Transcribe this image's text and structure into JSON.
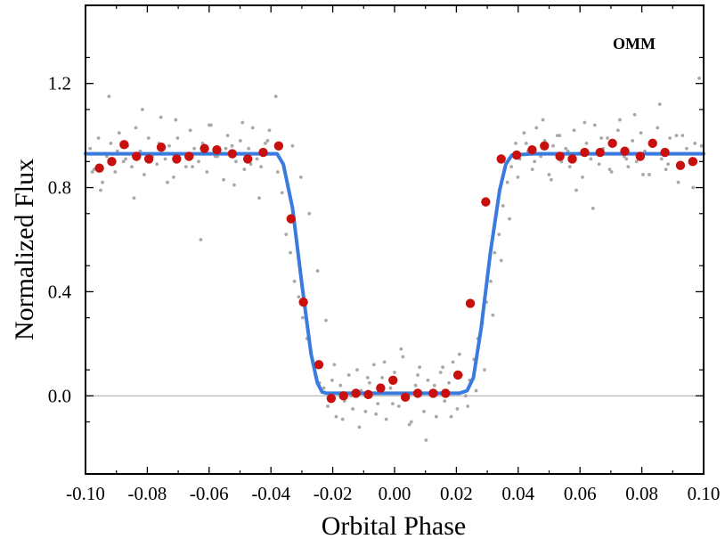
{
  "chart_data": {
    "type": "scatter",
    "title": "",
    "annotation": "OMM",
    "xlabel": "Orbital Phase",
    "ylabel": "Normalized Flux",
    "xlim": [
      -0.1,
      0.1
    ],
    "ylim": [
      -0.3,
      1.5
    ],
    "x_ticks": [
      -0.1,
      -0.08,
      -0.06,
      -0.04,
      -0.02,
      0.0,
      0.02,
      0.04,
      0.06,
      0.08,
      0.1
    ],
    "x_tick_labels": [
      "-0.10",
      "-0.08",
      "-0.06",
      "-0.04",
      "-0.02",
      "0.00",
      "0.02",
      "0.04",
      "0.06",
      "0.08",
      "0.10"
    ],
    "y_ticks": [
      0.0,
      0.4,
      0.8,
      1.2
    ],
    "y_tick_labels": [
      "0.0",
      "0.4",
      "0.8",
      "1.2"
    ],
    "reference_line": 0.0,
    "colors": {
      "raw": "#a8a8a8",
      "binned": "#c8100e",
      "model": "#3a7be0",
      "reference": "#b0b0b0"
    },
    "series": [
      {
        "name": "binned",
        "style": "large red markers",
        "x": [
          -0.0955,
          -0.0915,
          -0.0875,
          -0.0835,
          -0.0795,
          -0.0755,
          -0.0705,
          -0.0665,
          -0.0615,
          -0.0575,
          -0.0525,
          -0.0475,
          -0.0425,
          -0.0375,
          -0.0335,
          -0.0295,
          -0.0245,
          -0.0205,
          -0.0165,
          -0.0125,
          -0.0085,
          -0.0045,
          -0.0005,
          0.0035,
          0.0075,
          0.0125,
          0.0165,
          0.0205,
          0.0245,
          0.0295,
          0.0345,
          0.0395,
          0.0445,
          0.0485,
          0.0535,
          0.0575,
          0.0615,
          0.0665,
          0.0705,
          0.0745,
          0.0795,
          0.0835,
          0.0875,
          0.0925,
          0.0965
        ],
        "y": [
          0.875,
          0.9,
          0.965,
          0.92,
          0.91,
          0.955,
          0.91,
          0.92,
          0.95,
          0.945,
          0.93,
          0.91,
          0.935,
          0.96,
          0.68,
          0.36,
          0.12,
          -0.01,
          0.0,
          0.01,
          0.005,
          0.03,
          0.06,
          -0.005,
          0.01,
          0.01,
          0.01,
          0.08,
          0.355,
          0.745,
          0.91,
          0.925,
          0.945,
          0.96,
          0.92,
          0.91,
          0.935,
          0.935,
          0.97,
          0.94,
          0.92,
          0.97,
          0.935,
          0.885,
          0.9
        ]
      },
      {
        "name": "model",
        "style": "blue line",
        "x": [
          -0.1,
          -0.045,
          -0.038,
          -0.036,
          -0.033,
          -0.03,
          -0.027,
          -0.025,
          -0.0235,
          -0.022,
          0.021,
          0.0235,
          0.0255,
          0.028,
          0.031,
          0.034,
          0.036,
          0.038,
          0.045,
          0.1
        ],
        "y": [
          0.93,
          0.93,
          0.93,
          0.89,
          0.72,
          0.43,
          0.16,
          0.05,
          0.015,
          0.01,
          0.01,
          0.02,
          0.07,
          0.26,
          0.55,
          0.79,
          0.89,
          0.925,
          0.93,
          0.93
        ]
      },
      {
        "name": "raw",
        "style": "small grey dots",
        "x": [
          -0.0985,
          -0.0972,
          -0.0958,
          -0.0945,
          -0.0931,
          -0.0918,
          -0.0904,
          -0.0891,
          -0.0877,
          -0.0864,
          -0.085,
          -0.0837,
          -0.0823,
          -0.081,
          -0.0796,
          -0.0783,
          -0.0769,
          -0.0756,
          -0.0742,
          -0.0729,
          -0.0715,
          -0.0702,
          -0.0688,
          -0.0675,
          -0.0661,
          -0.0648,
          -0.0634,
          -0.0621,
          -0.0607,
          -0.0594,
          -0.058,
          -0.0567,
          -0.0553,
          -0.054,
          -0.0526,
          -0.0513,
          -0.0499,
          -0.0486,
          -0.0472,
          -0.0459,
          -0.0445,
          -0.0432,
          -0.0418,
          -0.0405,
          -0.0391,
          -0.0378,
          -0.0364,
          -0.0351,
          -0.0337,
          -0.0324,
          -0.031,
          -0.0297,
          -0.0283,
          -0.027,
          -0.0256,
          -0.0243,
          -0.0229,
          -0.0216,
          -0.0202,
          -0.0189,
          -0.0175,
          -0.0162,
          -0.0148,
          -0.0135,
          -0.0121,
          -0.0108,
          -0.0094,
          -0.0081,
          -0.0067,
          -0.0054,
          -0.004,
          -0.0027,
          -0.0013,
          0.0,
          0.0014,
          0.0027,
          0.0041,
          0.0054,
          0.0068,
          0.0081,
          0.0095,
          0.0108,
          0.0122,
          0.0135,
          0.0149,
          0.0162,
          0.0176,
          0.0189,
          0.0203,
          0.0216,
          0.023,
          0.0243,
          0.0257,
          0.027,
          0.0284,
          0.0297,
          0.0311,
          0.0324,
          0.0338,
          0.0351,
          0.0365,
          0.0378,
          0.0392,
          0.0405,
          0.0419,
          0.0432,
          0.0446,
          0.0459,
          0.0473,
          0.0486,
          0.05,
          0.0513,
          0.0527,
          0.054,
          0.0554,
          0.0567,
          0.0581,
          0.0594,
          0.0608,
          0.0621,
          0.0635,
          0.0648,
          0.0662,
          0.0675,
          0.0689,
          0.0702,
          0.0716,
          0.0729,
          0.0743,
          0.0756,
          0.077,
          0.0783,
          0.0797,
          0.081,
          0.0824,
          0.0837,
          0.0851,
          0.0864,
          0.0878,
          0.0891,
          0.0905,
          0.0918,
          0.0932,
          0.0945,
          0.0959,
          0.0972,
          0.0986,
          -0.0978,
          -0.0951,
          -0.0924,
          -0.0897,
          -0.087,
          -0.0843,
          -0.0816,
          -0.0789,
          -0.0762,
          -0.0735,
          -0.0708,
          -0.0681,
          -0.0654,
          -0.0627,
          -0.06,
          -0.0573,
          -0.0546,
          -0.0519,
          -0.0492,
          -0.0465,
          -0.0438,
          -0.0411,
          -0.0384,
          -0.0357,
          -0.033,
          -0.0303,
          -0.0276,
          -0.0249,
          -0.0222,
          -0.0195,
          -0.0168,
          -0.0141,
          -0.0114,
          -0.0087,
          -0.006,
          -0.0033,
          -0.0006,
          0.0021,
          0.0048,
          0.0075,
          0.0102,
          0.0129,
          0.0156,
          0.0183,
          0.021,
          0.0237,
          0.0264,
          0.0291,
          0.0318,
          0.0345,
          0.0372,
          0.0399,
          0.0426,
          0.0453,
          0.048,
          0.0507,
          0.0534,
          0.0561,
          0.0588,
          0.0615,
          0.0642,
          0.0669,
          0.0696,
          0.0723,
          0.075,
          0.0777,
          0.0804,
          0.0831,
          0.0858,
          0.0885,
          0.0912,
          0.0939,
          0.0966,
          0.0993
        ],
        "y": [
          0.95,
          0.87,
          0.99,
          0.82,
          0.92,
          0.97,
          0.86,
          1.01,
          0.9,
          0.96,
          0.88,
          1.03,
          0.94,
          0.85,
          0.99,
          0.92,
          0.89,
          1.07,
          0.91,
          0.96,
          0.84,
          0.99,
          0.93,
          0.88,
          1.02,
          0.95,
          0.9,
          0.97,
          0.86,
          1.04,
          0.92,
          0.94,
          0.83,
          1.0,
          0.96,
          0.9,
          0.98,
          0.87,
          0.95,
          1.03,
          0.91,
          0.88,
          0.97,
          1.02,
          0.93,
          0.86,
          0.78,
          0.62,
          0.55,
          0.44,
          0.38,
          0.3,
          0.22,
          0.16,
          0.08,
          0.05,
          0.03,
          -0.04,
          0.06,
          -0.08,
          0.04,
          -0.02,
          0.08,
          -0.05,
          0.1,
          0.02,
          -0.06,
          0.05,
          0.12,
          -0.03,
          0.07,
          -0.09,
          0.03,
          0.09,
          -0.04,
          0.15,
          0.0,
          -0.1,
          0.04,
          0.11,
          -0.06,
          0.06,
          0.02,
          -0.08,
          0.09,
          -0.02,
          0.05,
          0.13,
          -0.05,
          0.08,
          0.0,
          0.06,
          0.14,
          0.22,
          0.28,
          0.36,
          0.44,
          0.55,
          0.62,
          0.73,
          0.82,
          0.88,
          0.97,
          0.91,
          1.01,
          0.94,
          0.87,
          1.03,
          0.92,
          0.98,
          0.85,
          0.96,
          1.0,
          0.9,
          0.95,
          0.88,
          1.02,
          0.93,
          0.84,
          0.97,
          0.91,
          1.04,
          0.89,
          0.95,
          0.99,
          0.86,
          0.93,
          1.06,
          0.92,
          0.88,
          0.98,
          0.9,
          1.01,
          0.94,
          0.85,
          0.96,
          1.03,
          0.91,
          0.87,
          0.99,
          0.93,
          0.82,
          1.0,
          0.95,
          0.89,
          0.97,
          1.22,
          0.86,
          0.79,
          1.15,
          0.94,
          0.91,
          0.76,
          1.1,
          0.9,
          0.97,
          0.82,
          1.06,
          0.93,
          0.88,
          0.6,
          1.04,
          0.92,
          0.95,
          0.81,
          1.05,
          0.89,
          0.76,
          0.98,
          1.15,
          0.87,
          0.96,
          0.84,
          0.7,
          0.48,
          0.29,
          0.12,
          -0.09,
          0.0,
          -0.12,
          0.07,
          -0.07,
          0.13,
          -0.03,
          0.18,
          -0.11,
          0.08,
          -0.17,
          0.04,
          0.11,
          -0.08,
          0.16,
          -0.04,
          0.02,
          0.1,
          0.31,
          0.52,
          0.68,
          0.84,
          0.97,
          0.9,
          1.06,
          0.83,
          1.0,
          0.94,
          0.79,
          1.05,
          0.72,
          0.99,
          0.87,
          1.02,
          0.91,
          1.08,
          0.85,
          0.97,
          1.12,
          0.89,
          1.0,
          0.93,
          0.8,
          0.96
        ]
      }
    ]
  }
}
